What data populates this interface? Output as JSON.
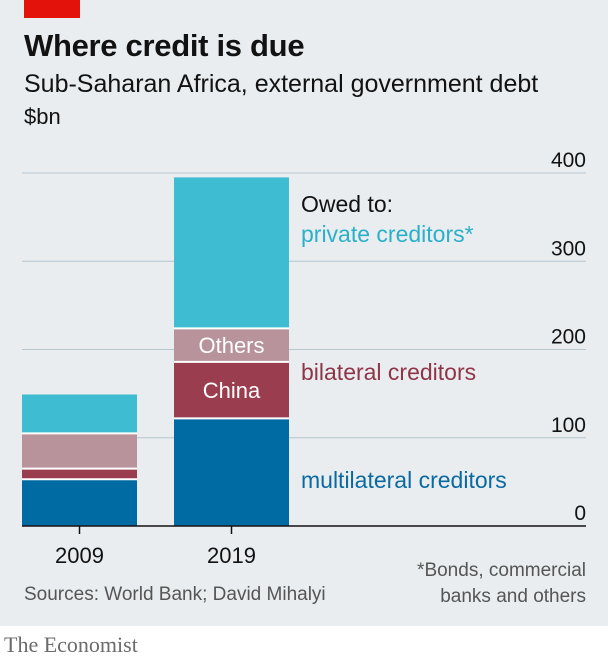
{
  "header": {
    "title": "Where credit is due",
    "subtitle": "Sub-Saharan Africa, external government debt",
    "unit": "$bn"
  },
  "chart_data": {
    "type": "bar",
    "stacked": true,
    "categories": [
      "2009",
      "2019"
    ],
    "ylim": [
      0,
      400
    ],
    "yticks": [
      0,
      100,
      200,
      300,
      400
    ],
    "y_axis_side": "right",
    "grid": true,
    "series": [
      {
        "name": "multilateral creditors",
        "group": "multilateral creditors",
        "color": "#006ba2",
        "values": [
          53,
          122
        ]
      },
      {
        "name": "China",
        "group": "bilateral creditors",
        "color": "#9a3d4e",
        "values": [
          12,
          64
        ]
      },
      {
        "name": "Others",
        "group": "bilateral creditors",
        "color": "#b9939c",
        "values": [
          40,
          38
        ]
      },
      {
        "name": "private creditors*",
        "group": "private creditors*",
        "color": "#3ebcd2",
        "values": [
          44,
          171
        ]
      }
    ],
    "legend_heading": "Owed to:",
    "legend": [
      {
        "label": "private creditors*",
        "color": "#2bb0c9"
      },
      {
        "label": "bilateral creditors",
        "color": "#8f3548"
      },
      {
        "label": "multilateral creditors",
        "color": "#0a6aa0"
      }
    ]
  },
  "footer": {
    "source": "Sources: World Bank; David Mihalyi",
    "footnote_lines": [
      "*Bonds, commercial",
      "banks and others"
    ],
    "brand": "The Economist"
  }
}
